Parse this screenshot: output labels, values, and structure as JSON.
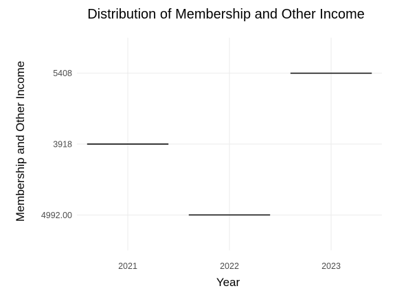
{
  "chart_data": {
    "type": "crossbar",
    "title": "Distribution of Membership and Other Income",
    "xlabel": "Year",
    "ylabel": "Membership and Other Income",
    "categories": [
      "2021",
      "2022",
      "2023"
    ],
    "y_categories": [
      "4992.00",
      "3918",
      "5408"
    ],
    "points": [
      {
        "x": "2021",
        "y": "3918"
      },
      {
        "x": "2022",
        "y": "4992.00"
      },
      {
        "x": "2023",
        "y": "5408"
      }
    ],
    "grid": true,
    "legend": "none",
    "colors": {
      "line": "#1a1a1a",
      "grid": "#ebebeb",
      "tick": "#4d4d4d"
    }
  }
}
